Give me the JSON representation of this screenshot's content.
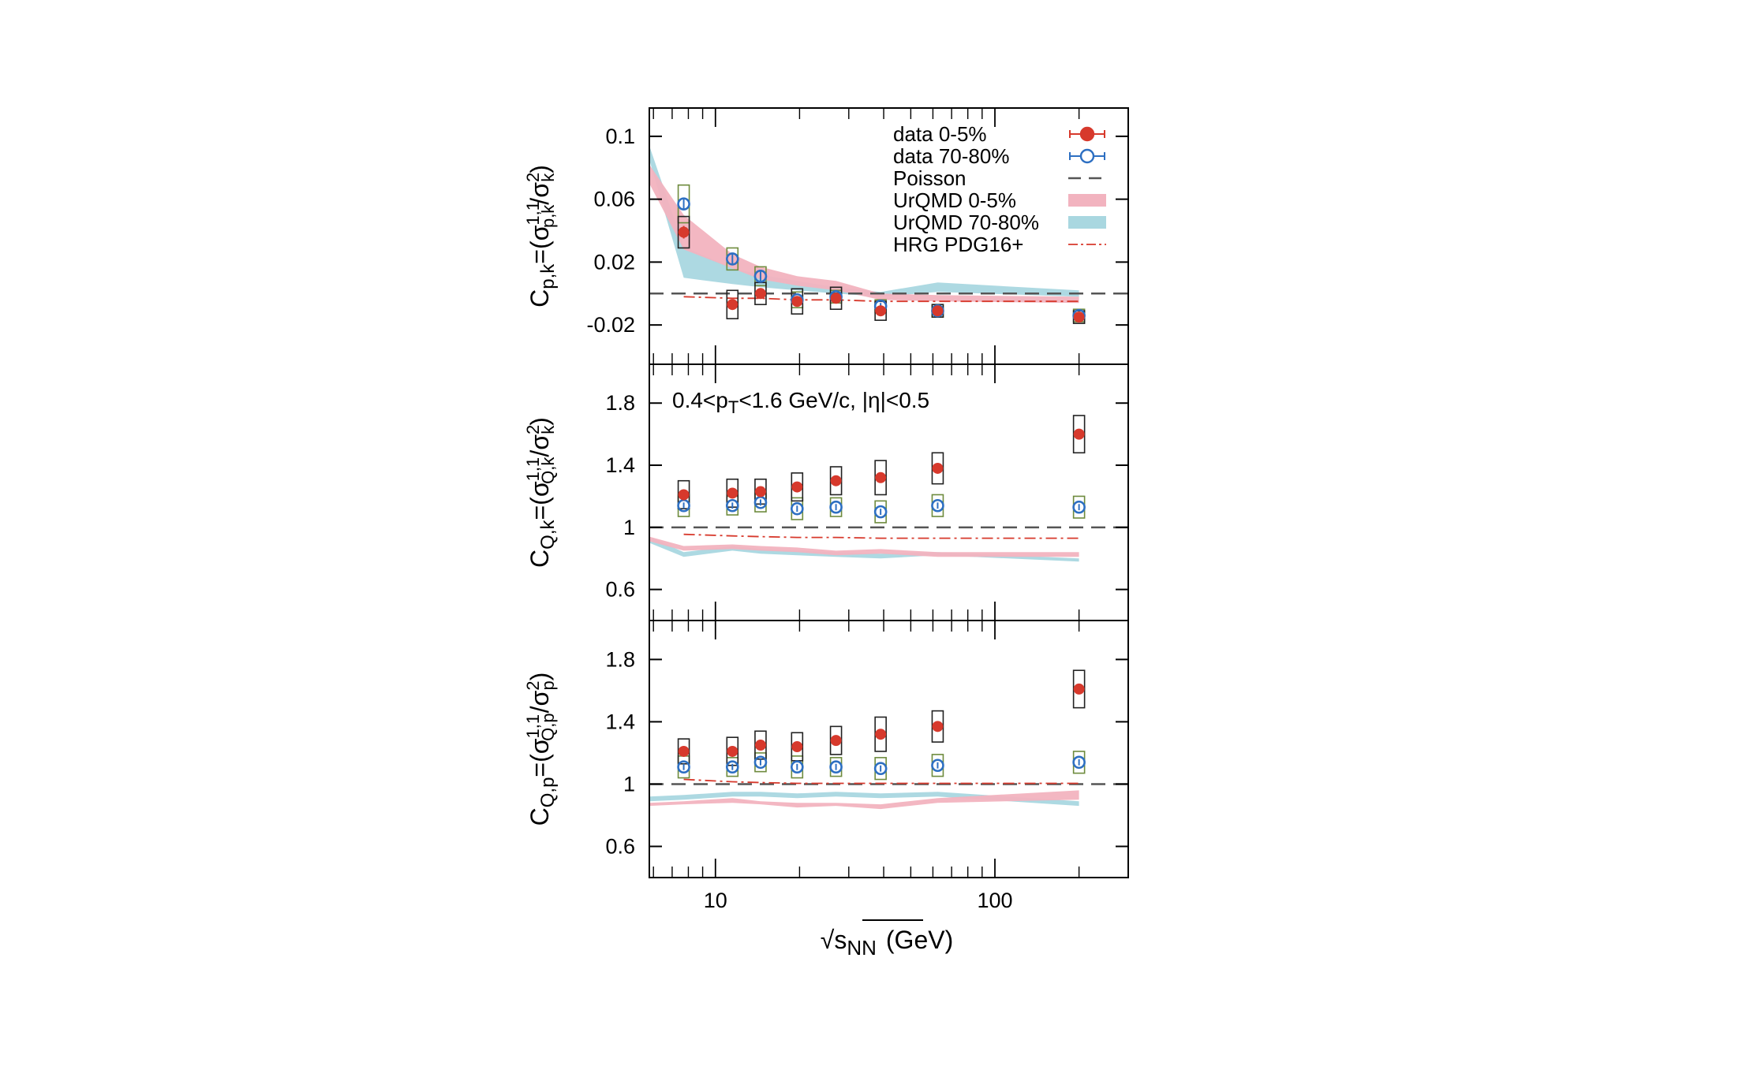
{
  "chart_data": {
    "type": "scatter",
    "x_axis": {
      "label_main": "√s",
      "label_sub": "NN",
      "label_unit": "(GeV)",
      "scale": "log",
      "range": [
        5.8,
        300
      ],
      "ticks": [
        10,
        100
      ],
      "tick_labels": [
        "10",
        "100"
      ]
    },
    "legend": {
      "placement": "top-right of top panel",
      "entries": [
        {
          "key": "data_central",
          "label": "data 0-5%",
          "style": "filled-circle"
        },
        {
          "key": "data_peripheral",
          "label": "data 70-80%",
          "style": "open-circle"
        },
        {
          "key": "poisson",
          "label": "Poisson",
          "style": "dashed-line"
        },
        {
          "key": "urqmd_central",
          "label": "UrQMD 0-5%",
          "style": "band"
        },
        {
          "key": "urqmd_peripheral",
          "label": "UrQMD 70-80%",
          "style": "band"
        },
        {
          "key": "hrg",
          "label": "HRG PDG16+",
          "style": "dash-dot-line"
        }
      ]
    },
    "colors": {
      "data_central": "#d7392c",
      "data_peripheral": "#2d6fc2",
      "poisson": "#555555",
      "urqmd_central": "#f2b3bf",
      "urqmd_peripheral": "#a9d7e0",
      "hrg": "#d7392c",
      "sys_central": "#222222",
      "sys_peripheral": "#6e8b3d"
    },
    "annotation": {
      "text_main": "0.4<p",
      "text_sub": "T",
      "text_rest": "<1.6 GeV/c, |η|<0.5",
      "panel": 1
    },
    "energies": [
      7.7,
      11.5,
      14.5,
      19.6,
      27,
      39,
      62.4,
      200
    ],
    "panels": [
      {
        "ylabel": {
          "a": "C",
          "a_sub": "p,k",
          "b": "=(σ",
          "b_sup": "1,1",
          "b_sub": "p,k",
          "c": "/σ",
          "c_sup": "2",
          "c_sub": "k",
          "d": ")"
        },
        "ylim": [
          -0.045,
          0.118
        ],
        "yticks": [
          -0.02,
          0.02,
          0.06,
          0.1
        ],
        "ytick_labels": [
          "-0.02",
          "0.02",
          "0.06",
          "0.1"
        ],
        "poisson": 0,
        "central": {
          "y": [
            0.039,
            -0.007,
            0.0,
            -0.005,
            -0.003,
            -0.011,
            -0.011,
            -0.015
          ],
          "stat": [
            0.004,
            0.002,
            0.002,
            0.002,
            0.002,
            0.002,
            0.002,
            0.002
          ],
          "sys": [
            0.01,
            0.009,
            0.007,
            0.008,
            0.007,
            0.006,
            0.004,
            0.004
          ]
        },
        "peripheral": {
          "y": [
            0.057,
            0.022,
            0.011,
            -0.004,
            -0.002,
            -0.008,
            -0.011,
            -0.014
          ],
          "stat": [
            0.004,
            0.003,
            0.003,
            0.002,
            0.002,
            0.002,
            0.002,
            0.002
          ],
          "sys": [
            0.012,
            0.007,
            0.006,
            0.005,
            0.004,
            0.004,
            0.004,
            0.004
          ]
        },
        "urqmd_central": {
          "x": [
            5.8,
            7.7,
            11.5,
            14.5,
            19.6,
            27,
            39,
            62.4,
            200
          ],
          "lo": [
            0.07,
            0.028,
            0.016,
            0.009,
            0.005,
            0.002,
            -0.004,
            -0.005,
            -0.006
          ],
          "hi": [
            0.082,
            0.05,
            0.025,
            0.017,
            0.011,
            0.008,
            0.0,
            -0.001,
            -0.002
          ]
        },
        "urqmd_peripheral": {
          "x": [
            5.8,
            7.7,
            11.5,
            14.5,
            19.6,
            27,
            39,
            62.4,
            200
          ],
          "lo": [
            0.085,
            0.01,
            0.006,
            0.004,
            0.002,
            0.0,
            -0.002,
            0.001,
            -0.002
          ],
          "hi": [
            0.094,
            0.03,
            0.016,
            0.012,
            0.008,
            0.004,
            0.001,
            0.007,
            0.002
          ]
        },
        "hrg": {
          "x": [
            7.7,
            11.5,
            14.5,
            19.6,
            27,
            39,
            62.4,
            200
          ],
          "y": [
            -0.002,
            -0.003,
            -0.003,
            -0.004,
            -0.004,
            -0.005,
            -0.005,
            -0.005
          ]
        }
      },
      {
        "ylabel": {
          "a": "C",
          "a_sub": "Q,k",
          "b": "=(σ",
          "b_sup": "1,1",
          "b_sub": "Q,k",
          "c": "/σ",
          "c_sup": "2",
          "c_sub": "k",
          "d": ")"
        },
        "ylim": [
          0.4,
          2.05
        ],
        "yticks": [
          0.6,
          1,
          1.4,
          1.8
        ],
        "ytick_labels": [
          "0.6",
          "1",
          "1.4",
          "1.8"
        ],
        "poisson": 1,
        "central": {
          "y": [
            1.21,
            1.22,
            1.23,
            1.26,
            1.3,
            1.32,
            1.38,
            1.6
          ],
          "stat": [
            0.01,
            0.01,
            0.01,
            0.01,
            0.01,
            0.01,
            0.01,
            0.02
          ],
          "sys": [
            0.09,
            0.09,
            0.08,
            0.09,
            0.09,
            0.11,
            0.1,
            0.12
          ]
        },
        "peripheral": {
          "y": [
            1.14,
            1.14,
            1.16,
            1.12,
            1.13,
            1.1,
            1.14,
            1.13
          ],
          "stat": [
            0.02,
            0.02,
            0.02,
            0.02,
            0.02,
            0.02,
            0.02,
            0.02
          ],
          "sys": [
            0.07,
            0.06,
            0.06,
            0.07,
            0.06,
            0.07,
            0.07,
            0.07
          ]
        },
        "urqmd_central": {
          "x": [
            5.8,
            7.7,
            11.5,
            14.5,
            19.6,
            27,
            39,
            62.4,
            200
          ],
          "lo": [
            0.91,
            0.85,
            0.86,
            0.85,
            0.84,
            0.82,
            0.83,
            0.81,
            0.81
          ],
          "hi": [
            0.94,
            0.88,
            0.89,
            0.88,
            0.87,
            0.85,
            0.86,
            0.84,
            0.84
          ]
        },
        "urqmd_peripheral": {
          "x": [
            5.8,
            7.7,
            11.5,
            14.5,
            19.6,
            27,
            39,
            62.4,
            200
          ],
          "lo": [
            0.9,
            0.81,
            0.85,
            0.83,
            0.82,
            0.81,
            0.8,
            0.82,
            0.78
          ],
          "hi": [
            0.94,
            0.84,
            0.88,
            0.86,
            0.85,
            0.84,
            0.83,
            0.84,
            0.8
          ]
        },
        "hrg": {
          "x": [
            7.7,
            11.5,
            14.5,
            19.6,
            27,
            39,
            62.4,
            200
          ],
          "y": [
            0.955,
            0.945,
            0.94,
            0.935,
            0.935,
            0.93,
            0.93,
            0.93
          ]
        }
      },
      {
        "ylabel": {
          "a": "C",
          "a_sub": "Q,p",
          "b": "=(σ",
          "b_sup": "1,1",
          "b_sub": "Q,p",
          "c": "/σ",
          "c_sup": "2",
          "c_sub": "p",
          "d": ")"
        },
        "ylim": [
          0.4,
          2.05
        ],
        "yticks": [
          0.6,
          1,
          1.4,
          1.8
        ],
        "ytick_labels": [
          "0.6",
          "1",
          "1.4",
          "1.8"
        ],
        "poisson": 1,
        "central": {
          "y": [
            1.21,
            1.21,
            1.25,
            1.24,
            1.28,
            1.32,
            1.37,
            1.61
          ],
          "stat": [
            0.01,
            0.01,
            0.01,
            0.01,
            0.01,
            0.01,
            0.01,
            0.02
          ],
          "sys": [
            0.08,
            0.09,
            0.09,
            0.09,
            0.09,
            0.11,
            0.1,
            0.12
          ]
        },
        "peripheral": {
          "y": [
            1.11,
            1.11,
            1.14,
            1.11,
            1.11,
            1.1,
            1.12,
            1.14
          ],
          "stat": [
            0.02,
            0.02,
            0.02,
            0.02,
            0.02,
            0.02,
            0.02,
            0.02
          ],
          "sys": [
            0.07,
            0.06,
            0.06,
            0.07,
            0.06,
            0.07,
            0.07,
            0.07
          ]
        },
        "urqmd_central": {
          "x": [
            5.8,
            7.7,
            11.5,
            14.5,
            19.6,
            27,
            39,
            62.4,
            200
          ],
          "lo": [
            0.86,
            0.87,
            0.88,
            0.87,
            0.85,
            0.86,
            0.84,
            0.88,
            0.9
          ],
          "hi": [
            0.88,
            0.89,
            0.91,
            0.89,
            0.88,
            0.88,
            0.87,
            0.91,
            0.96
          ]
        },
        "urqmd_peripheral": {
          "x": [
            5.8,
            7.7,
            11.5,
            14.5,
            19.6,
            27,
            39,
            62.4,
            200
          ],
          "lo": [
            0.89,
            0.9,
            0.92,
            0.92,
            0.91,
            0.92,
            0.91,
            0.92,
            0.86
          ],
          "hi": [
            0.92,
            0.93,
            0.95,
            0.95,
            0.94,
            0.95,
            0.94,
            0.95,
            0.89
          ]
        },
        "hrg": {
          "x": [
            7.7,
            11.5,
            14.5,
            19.6,
            27,
            39,
            62.4,
            200
          ],
          "y": [
            1.03,
            1.015,
            1.01,
            1.005,
            1.005,
            1.005,
            1.005,
            1.005
          ]
        }
      }
    ]
  }
}
